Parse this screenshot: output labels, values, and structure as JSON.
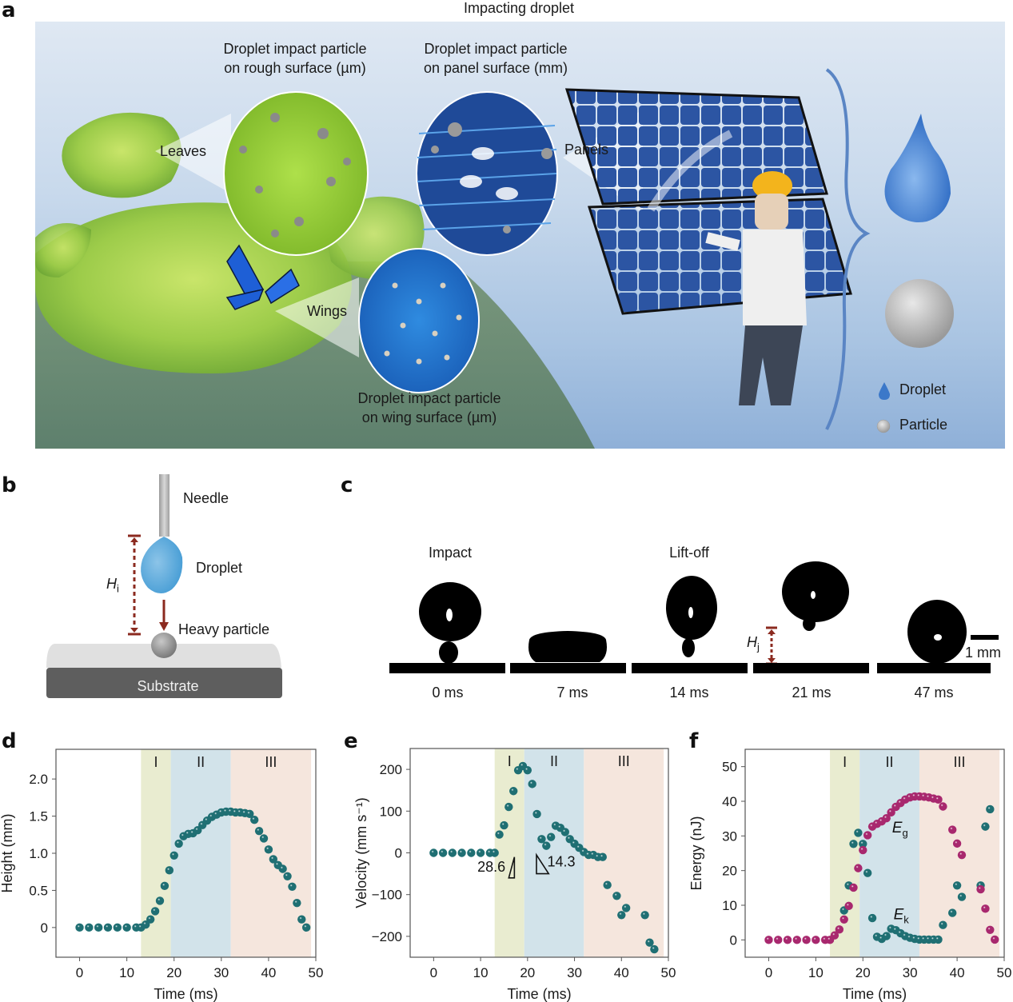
{
  "figure": {
    "panels": {
      "a": {
        "letter": "a",
        "title": "Impacting droplet",
        "callouts": {
          "leaves_label": "Leaves",
          "wings_label": "Wings",
          "panels_label": "Panels",
          "rough_surface_caption_line1": "Droplet impact particle",
          "rough_surface_caption_line2": "on rough surface (µm)",
          "panel_surface_caption_line1": "Droplet impact particle",
          "panel_surface_caption_line2": "on panel surface (mm)",
          "wing_surface_caption_line1": "Droplet impact particle",
          "wing_surface_caption_line2": "on wing surface (µm)"
        },
        "legend": [
          {
            "icon": "droplet-icon",
            "label": "Droplet",
            "color": "#3b78c9"
          },
          {
            "icon": "particle-icon",
            "label": "Particle",
            "color": "#b8b8b8"
          }
        ]
      },
      "b": {
        "letter": "b",
        "needle_label": "Needle",
        "droplet_label": "Droplet",
        "height_symbol": "H",
        "height_subscript": "i",
        "particle_label": "Heavy particle",
        "substrate_label": "Substrate"
      },
      "c": {
        "letter": "c",
        "phase_labels": {
          "impact": "Impact",
          "liftoff": "Lift-off"
        },
        "frames": [
          {
            "time": "0 ms"
          },
          {
            "time": "7 ms"
          },
          {
            "time": "14 ms"
          },
          {
            "time": "21 ms"
          },
          {
            "time": "47 ms"
          }
        ],
        "jump_symbol": "H",
        "jump_subscript": "j",
        "scale_bar_label": "1 mm"
      },
      "d": {
        "letter": "d"
      },
      "e": {
        "letter": "e"
      },
      "f": {
        "letter": "f"
      }
    }
  },
  "colors": {
    "teal_marker": "#1f6f73",
    "magenta_marker": "#a8286e",
    "region_I": "#e9ecd0",
    "region_II": "#d2e3ea",
    "region_III": "#f5e6dd",
    "arrow_red": "#8b2a1f"
  },
  "chart_data": [
    {
      "id": "d",
      "type": "scatter",
      "title": "",
      "xlabel": "Time (ms)",
      "ylabel": "Height (mm)",
      "xlim": [
        -5,
        50
      ],
      "ylim": [
        -0.4,
        2.4
      ],
      "xticks": [
        0,
        10,
        20,
        30,
        40,
        50
      ],
      "yticks": [
        0,
        0.5,
        1.0,
        1.5,
        2.0
      ],
      "ytick_labels": [
        "0",
        "0.5",
        "1.0",
        "1.5",
        "2.0"
      ],
      "grid": false,
      "regions": [
        {
          "label": "I",
          "x0": 13,
          "x1": 19.3
        },
        {
          "label": "II",
          "x0": 19.3,
          "x1": 32
        },
        {
          "label": "III",
          "x0": 32,
          "x1": 49
        }
      ],
      "series": [
        {
          "name": "Height",
          "color": "#1f6f73",
          "x": [
            0,
            2,
            4,
            6,
            8,
            10,
            12,
            13,
            14,
            15,
            16,
            17,
            18,
            19,
            20,
            21,
            22,
            23,
            24,
            25,
            26,
            27,
            28,
            29,
            30,
            31,
            32,
            33,
            34,
            35,
            36,
            37,
            38,
            39,
            40,
            41,
            42,
            43,
            44,
            45,
            46,
            47,
            48
          ],
          "y": [
            0,
            0,
            0,
            0,
            0,
            0,
            0,
            0,
            0.04,
            0.11,
            0.22,
            0.36,
            0.56,
            0.77,
            0.97,
            1.13,
            1.23,
            1.26,
            1.27,
            1.31,
            1.38,
            1.44,
            1.49,
            1.52,
            1.55,
            1.56,
            1.56,
            1.55,
            1.55,
            1.54,
            1.53,
            1.45,
            1.3,
            1.2,
            1.05,
            0.92,
            0.84,
            0.79,
            0.69,
            0.55,
            0.33,
            0.11,
            0.0
          ]
        }
      ]
    },
    {
      "id": "e",
      "type": "scatter",
      "title": "",
      "xlabel": "Time (ms)",
      "ylabel": "Velocity (mm s⁻¹)",
      "xlim": [
        -5,
        50
      ],
      "ylim": [
        -250,
        250
      ],
      "xticks": [
        0,
        10,
        20,
        30,
        40,
        50
      ],
      "yticks": [
        -200,
        -100,
        0,
        100,
        200
      ],
      "ytick_labels": [
        "−200",
        "−100",
        "0",
        "100",
        "200"
      ],
      "grid": false,
      "regions": [
        {
          "label": "I",
          "x0": 13,
          "x1": 19.3
        },
        {
          "label": "II",
          "x0": 19.3,
          "x1": 32
        },
        {
          "label": "III",
          "x0": 32,
          "x1": 49
        }
      ],
      "annotations": [
        {
          "text": "28.6",
          "type": "slope-triangle"
        },
        {
          "text": "14.3",
          "type": "slope-triangle"
        }
      ],
      "series": [
        {
          "name": "Velocity",
          "color": "#1f6f73",
          "x": [
            0,
            2,
            4,
            6,
            8,
            10,
            12,
            13,
            14,
            15,
            16,
            17,
            18,
            19,
            20,
            21,
            22,
            23,
            24,
            25,
            26,
            27,
            28,
            29,
            30,
            31,
            32,
            33,
            34,
            35,
            36,
            37,
            39,
            40,
            41,
            45,
            46,
            47
          ],
          "y": [
            0,
            0,
            0,
            0,
            0,
            0,
            0,
            0,
            44,
            66,
            110,
            148,
            198,
            208,
            198,
            165,
            93,
            33,
            17,
            38,
            65,
            60,
            50,
            33,
            22,
            12,
            2,
            -5,
            -5,
            -10,
            -10,
            -77,
            -103,
            -149,
            -132,
            -149,
            -215,
            -231
          ]
        }
      ]
    },
    {
      "id": "f",
      "type": "scatter",
      "title": "",
      "xlabel": "Time (ms)",
      "ylabel": "Energy (nJ)",
      "xlim": [
        -5,
        50
      ],
      "ylim": [
        -5,
        55
      ],
      "xticks": [
        0,
        10,
        20,
        30,
        40,
        50
      ],
      "yticks": [
        0,
        10,
        20,
        30,
        40,
        50
      ],
      "ytick_labels": [
        "0",
        "10",
        "20",
        "30",
        "40",
        "50"
      ],
      "grid": false,
      "regions": [
        {
          "label": "I",
          "x0": 13,
          "x1": 19.3
        },
        {
          "label": "II",
          "x0": 19.3,
          "x1": 32
        },
        {
          "label": "III",
          "x0": 32,
          "x1": 49
        }
      ],
      "series_labels": [
        {
          "symbol": "E",
          "subscript": "g",
          "series": "Eg"
        },
        {
          "symbol": "E",
          "subscript": "k",
          "series": "Ek"
        }
      ],
      "series": [
        {
          "name": "Ek",
          "color": "#1f6f73",
          "x": [
            16,
            17,
            18,
            19,
            20,
            21,
            22,
            23,
            24,
            25,
            26,
            27,
            28,
            29,
            30,
            31,
            32,
            33,
            34,
            35,
            36,
            37,
            39,
            40,
            41,
            45,
            46,
            47
          ],
          "y": [
            8.5,
            15.7,
            27.7,
            30.9,
            27.7,
            19.3,
            6.3,
            0.9,
            0.3,
            1.1,
            3.2,
            2.8,
            1.9,
            1.1,
            0.6,
            0.3,
            0.1,
            0.1,
            0.1,
            0.1,
            0.1,
            4.3,
            7.8,
            15.7,
            12.4,
            15.7,
            32.7,
            37.7
          ]
        },
        {
          "name": "Eg",
          "color": "#a8286e",
          "x": [
            0,
            2,
            4,
            6,
            8,
            10,
            12,
            13,
            14,
            15,
            16,
            17,
            18,
            19,
            20,
            21,
            22,
            23,
            24,
            25,
            26,
            27,
            28,
            29,
            30,
            31,
            32,
            33,
            34,
            35,
            36,
            37,
            39,
            40,
            41,
            45,
            46,
            47,
            48
          ],
          "y": [
            0,
            0,
            0,
            0,
            0,
            0,
            0,
            0,
            1.3,
            3.0,
            5.9,
            9.8,
            15.1,
            20.7,
            25.9,
            30.2,
            32.7,
            33.5,
            34.2,
            35.1,
            36.8,
            38.4,
            39.5,
            40.5,
            41.1,
            41.4,
            41.4,
            41.3,
            41.1,
            40.8,
            40.5,
            38.5,
            31.8,
            27.8,
            24.5,
            14.6,
            9.0,
            2.9,
            0.1
          ]
        }
      ]
    }
  ]
}
